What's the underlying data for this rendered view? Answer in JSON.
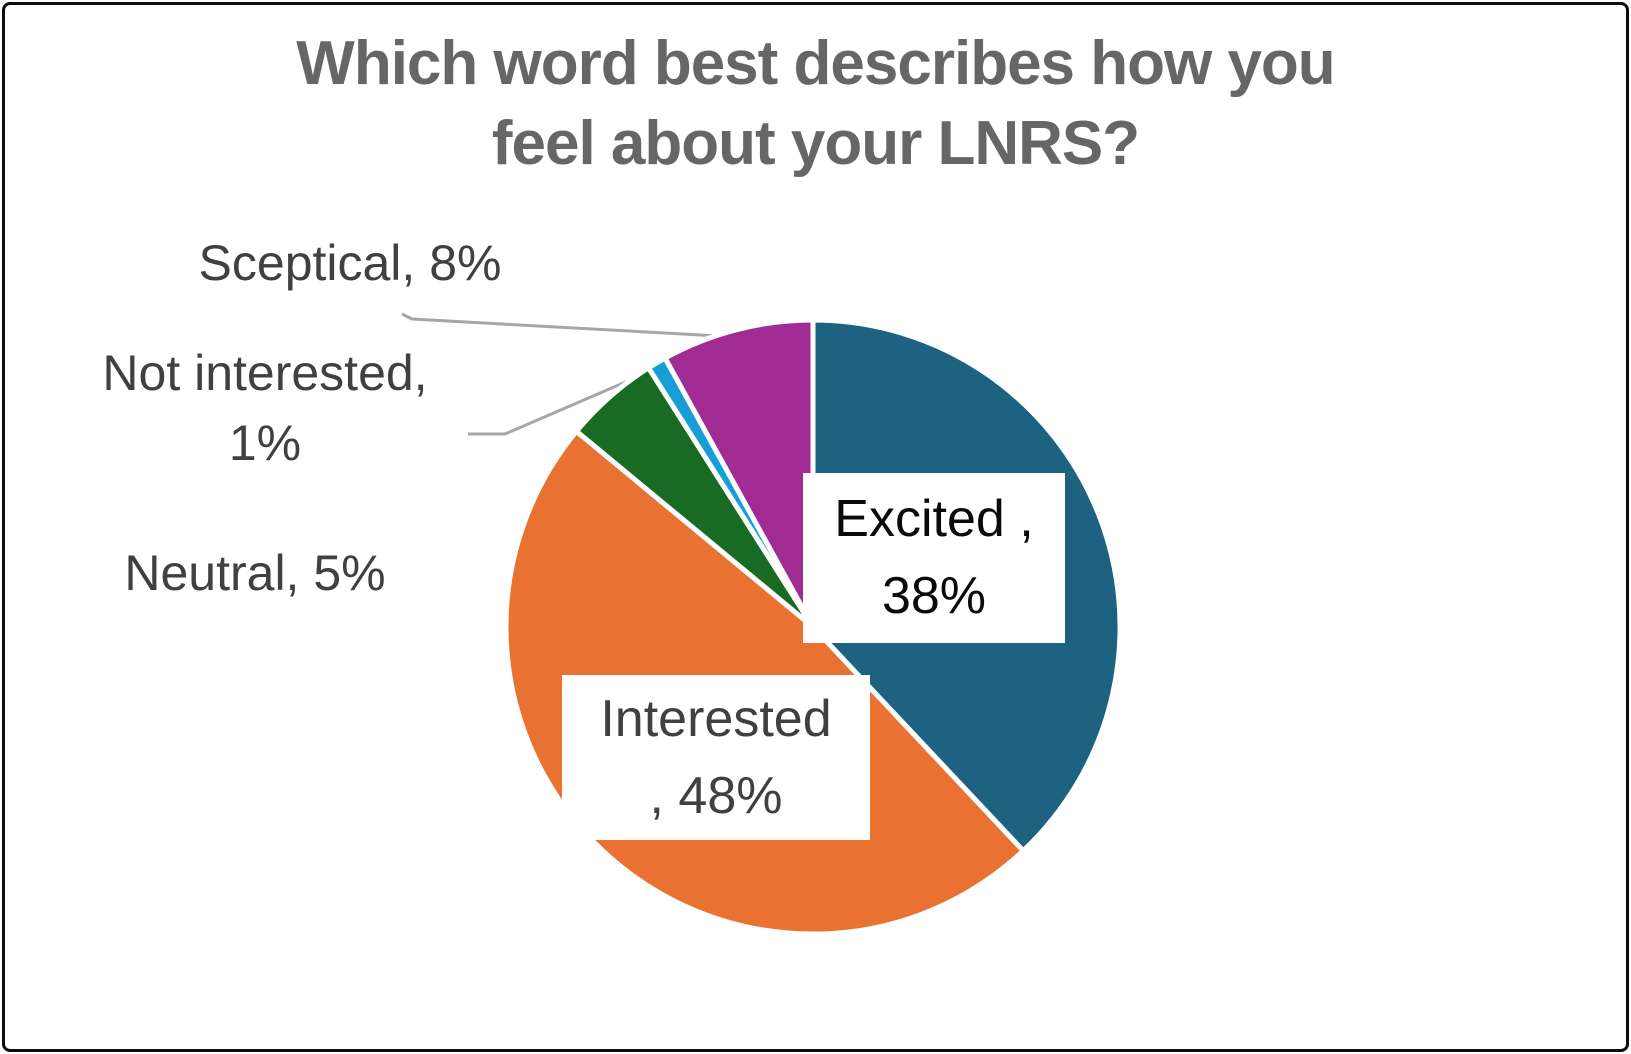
{
  "title": {
    "line1": "Which word best describes how you",
    "line2": "feel about your LNRS?"
  },
  "chart_data": {
    "type": "pie",
    "title": "Which word best describes how you feel about your LNRS?",
    "categories": [
      "Excited",
      "Interested",
      "Neutral",
      "Not interested",
      "Sceptical"
    ],
    "values": [
      38,
      48,
      5,
      1,
      8
    ],
    "unit": "%",
    "colors": [
      "#1E6282",
      "#E97132",
      "#196B24",
      "#189ED6",
      "#A02B93"
    ],
    "start_angle_deg": 0,
    "direction": "clockwise",
    "slice_gap_color": "#ffffff",
    "legend": "none",
    "labels": {
      "excited": {
        "line1": "Excited ,",
        "line2": "38%"
      },
      "interested": {
        "line1": "Interested",
        "line2": ", 48%"
      },
      "sceptical": {
        "text": "Sceptical, 8%"
      },
      "not_interested": {
        "line1": "Not interested,",
        "line2": "1%"
      },
      "neutral": {
        "text": "Neutral, 5%"
      }
    }
  },
  "colors": {
    "title_text": "#666666",
    "outside_label_text": "#404040",
    "excited_label_text": "#0a0a0a",
    "interested_label_text": "#404040",
    "leader_line": "#a6a6a6",
    "page_border": "#0d0d0d",
    "background": "#ffffff"
  }
}
